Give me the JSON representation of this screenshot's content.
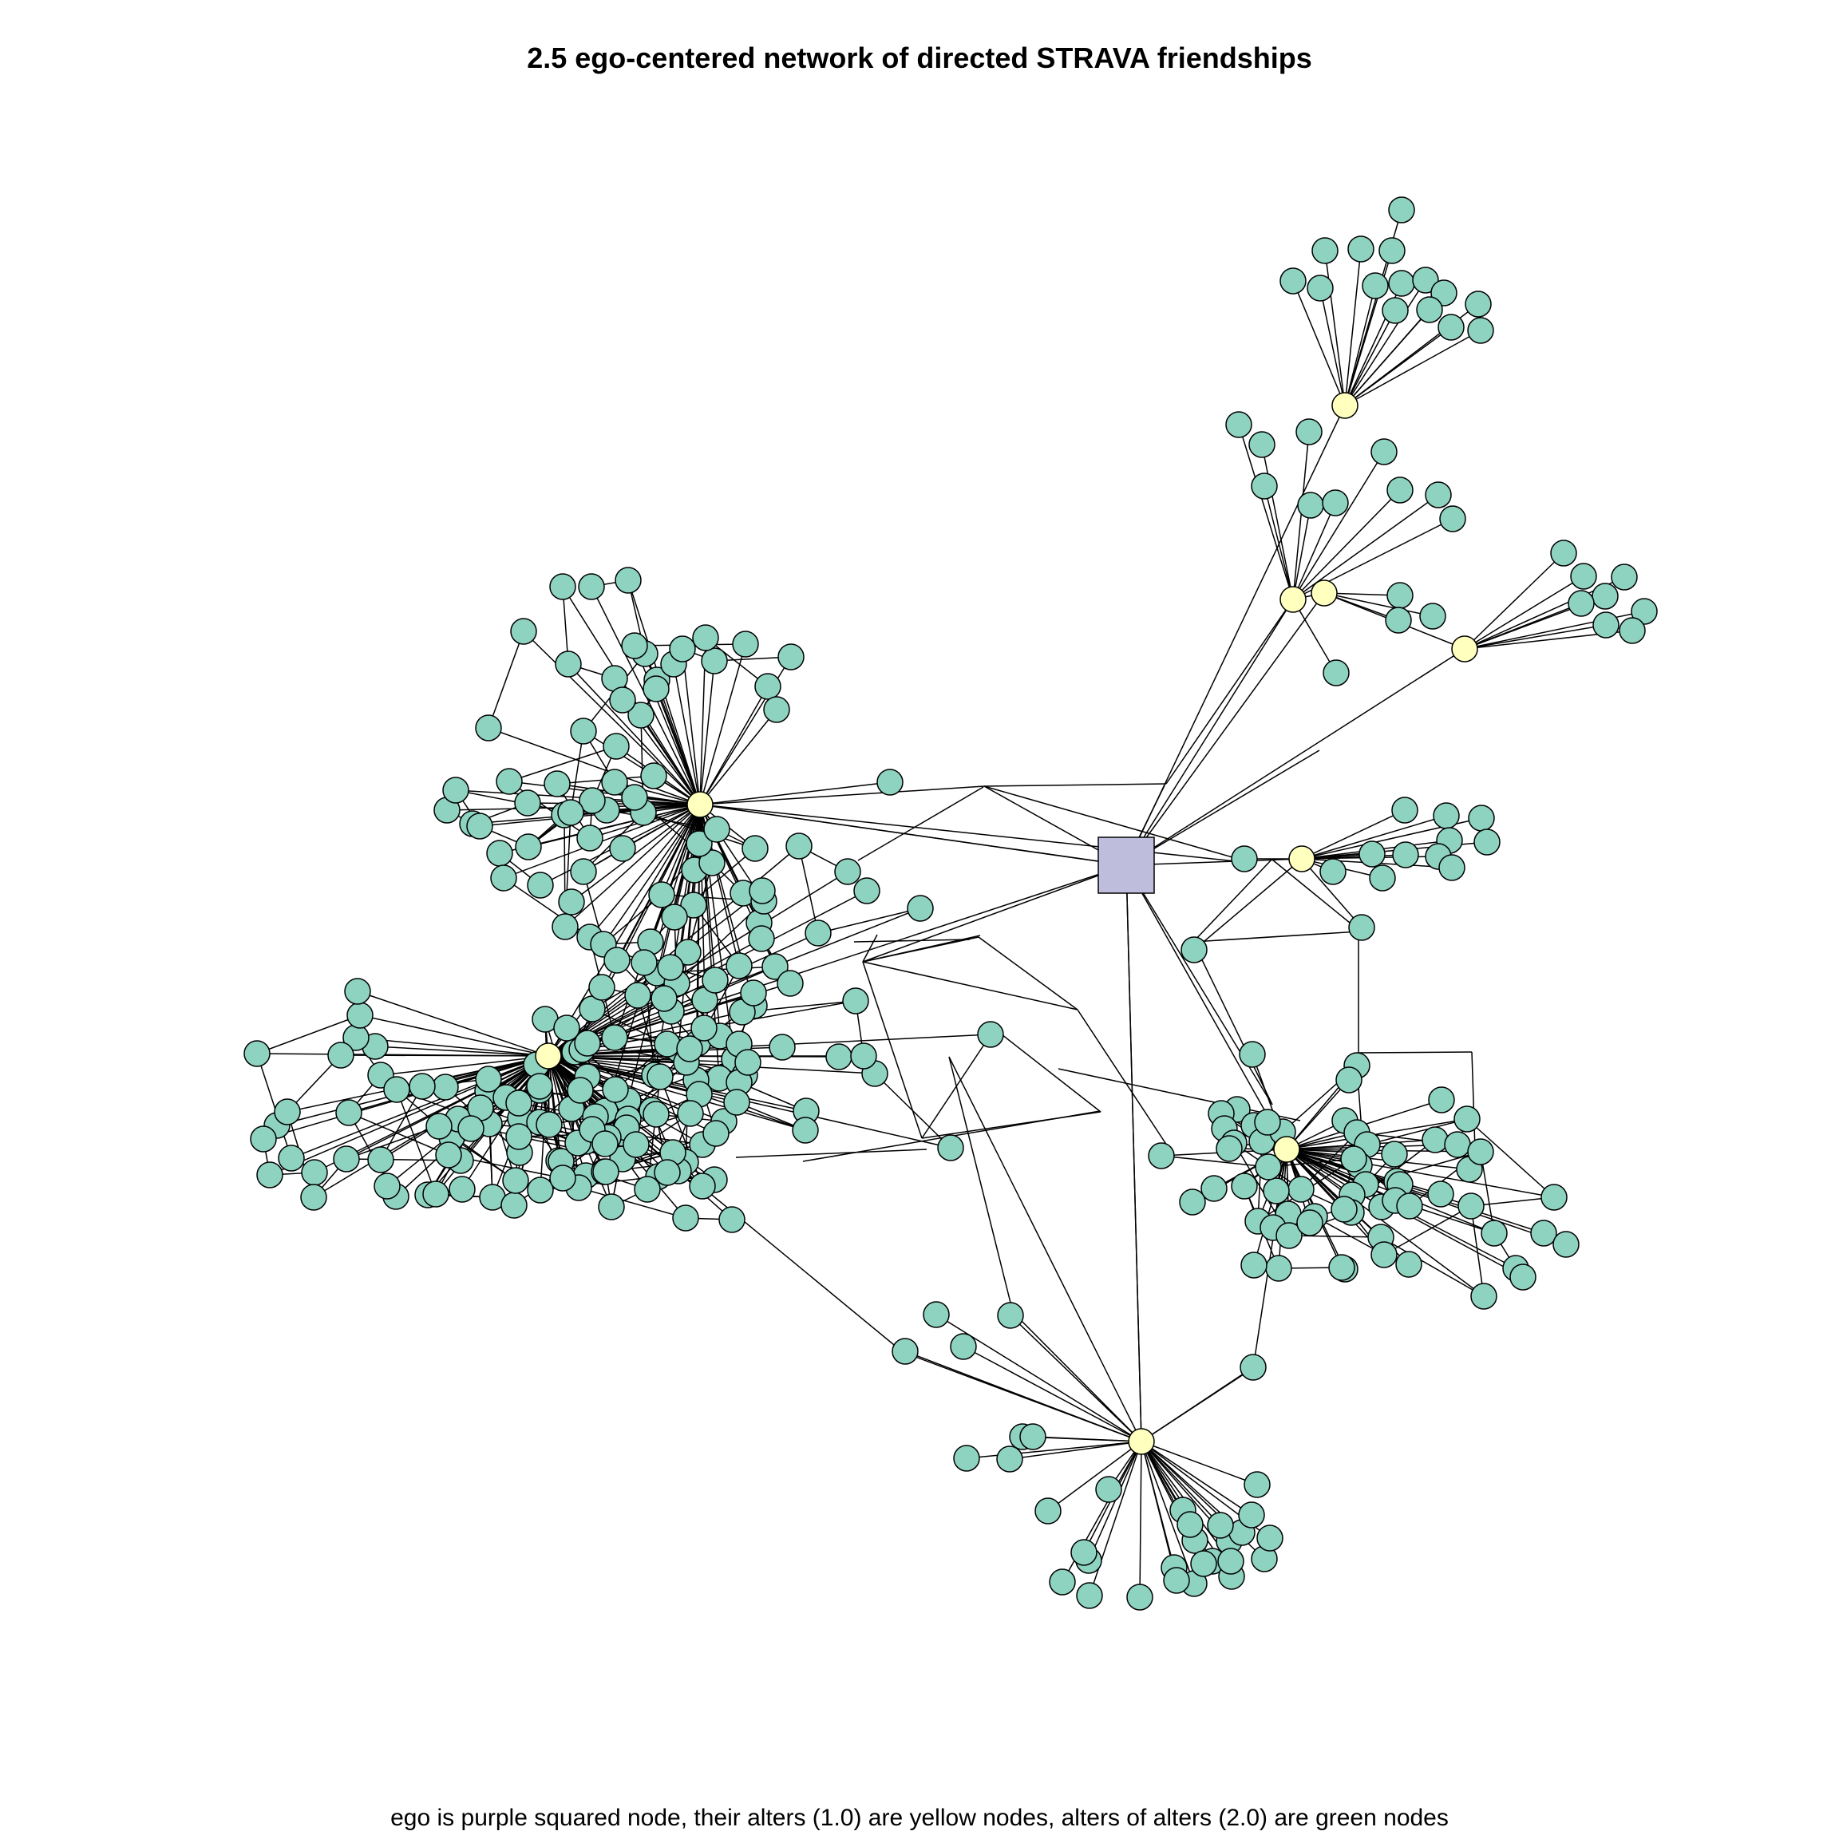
{
  "title": "2.5 ego-centered network of directed STRAVA friendships",
  "caption": "ego is purple squared node, their alters (1.0) are yellow nodes, alters of alters (2.0) are green nodes",
  "colors": {
    "ego": "#bebedc",
    "alter": "#ffffbe",
    "alter_of_alter": "#8ed2c0",
    "edge": "#000000",
    "stroke": "#000000"
  },
  "legend_groups": [
    {
      "name": "ego",
      "shape": "square",
      "color": "#bebedc"
    },
    {
      "name": "alters (1.0)",
      "shape": "circle",
      "color": "#ffffbe"
    },
    {
      "name": "alters of alters (2.0)",
      "shape": "circle",
      "color": "#8ed2c0"
    }
  ]
}
